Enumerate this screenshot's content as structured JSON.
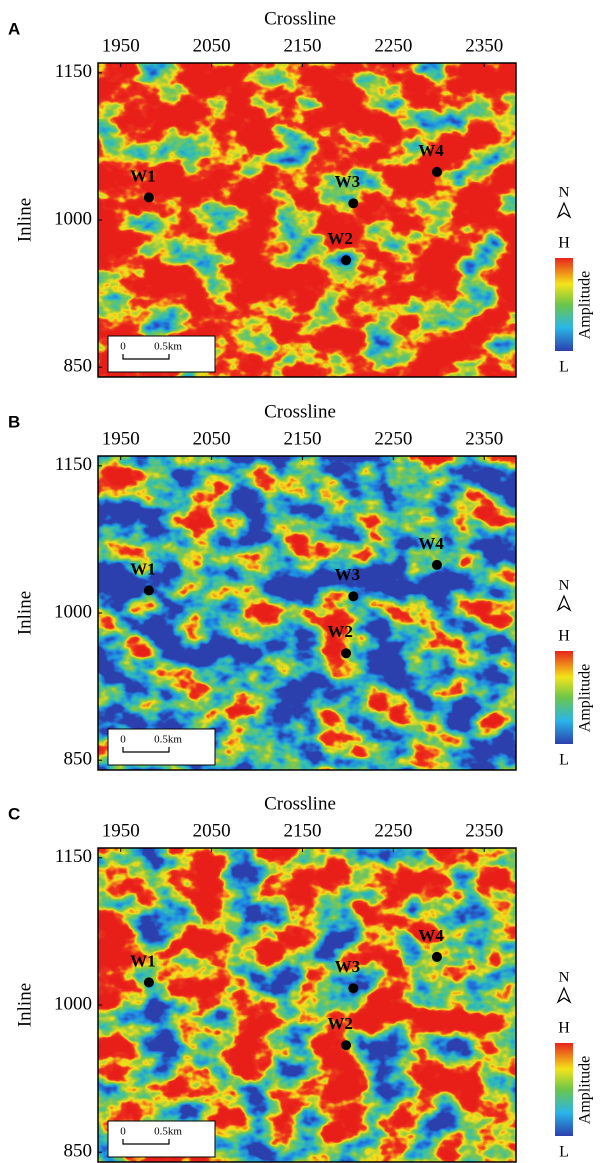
{
  "panels": [
    {
      "label": "A",
      "x_label": "Crossline",
      "y_label": "Inline",
      "xlim": [
        1925,
        2385
      ],
      "ylim": [
        840,
        1160
      ],
      "xticks": [
        1950,
        2050,
        2150,
        2250,
        2350
      ],
      "yticks": [
        850,
        1000,
        1150
      ],
      "wells": [
        {
          "name": "W1",
          "crossline": 1981,
          "inline": 1023
        },
        {
          "name": "W3",
          "crossline": 2206,
          "inline": 1017
        },
        {
          "name": "W2",
          "crossline": 2198,
          "inline": 959
        },
        {
          "name": "W4",
          "crossline": 2298,
          "inline": 1049
        }
      ]
    },
    {
      "label": "B",
      "x_label": "Crossline",
      "y_label": "Inline",
      "xlim": [
        1925,
        2385
      ],
      "ylim": [
        840,
        1160
      ],
      "xticks": [
        1950,
        2050,
        2150,
        2250,
        2350
      ],
      "yticks": [
        850,
        1000,
        1150
      ],
      "wells": [
        {
          "name": "W1",
          "crossline": 1981,
          "inline": 1023
        },
        {
          "name": "W3",
          "crossline": 2206,
          "inline": 1017
        },
        {
          "name": "W2",
          "crossline": 2198,
          "inline": 959
        },
        {
          "name": "W4",
          "crossline": 2298,
          "inline": 1049
        }
      ]
    },
    {
      "label": "C",
      "x_label": "Crossline",
      "y_label": "Inline",
      "xlim": [
        1925,
        2385
      ],
      "ylim": [
        840,
        1160
      ],
      "xticks": [
        1950,
        2050,
        2150,
        2250,
        2350
      ],
      "yticks": [
        850,
        1000,
        1150
      ],
      "wells": [
        {
          "name": "W1",
          "crossline": 1981,
          "inline": 1023
        },
        {
          "name": "W3",
          "crossline": 2206,
          "inline": 1017
        },
        {
          "name": "W2",
          "crossline": 2198,
          "inline": 959
        },
        {
          "name": "W4",
          "crossline": 2298,
          "inline": 1049
        }
      ]
    }
  ],
  "legend": {
    "north": "N",
    "high": "H",
    "low": "L",
    "colorbar_label": "Amplitude"
  },
  "scale_bar": {
    "start": "0",
    "length": "0.5km"
  }
}
